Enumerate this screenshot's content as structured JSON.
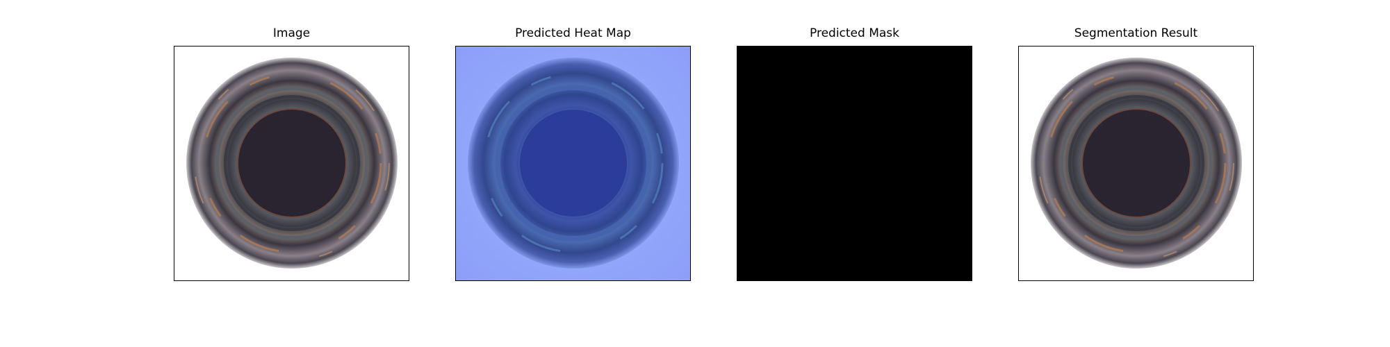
{
  "panels": [
    {
      "title": "Image",
      "content": "bottle-top-photo"
    },
    {
      "title": "Predicted Heat Map",
      "content": "heatmap-overlay"
    },
    {
      "title": "Predicted Mask",
      "content": "binary-mask"
    },
    {
      "title": "Segmentation Result",
      "content": "bottle-top-photo"
    }
  ],
  "colors": {
    "heatmap_background": "#8fa6ff",
    "mask_fill": "#000000",
    "bottle_dark": "#2a2430",
    "bottle_highlight": "#b07a55"
  }
}
